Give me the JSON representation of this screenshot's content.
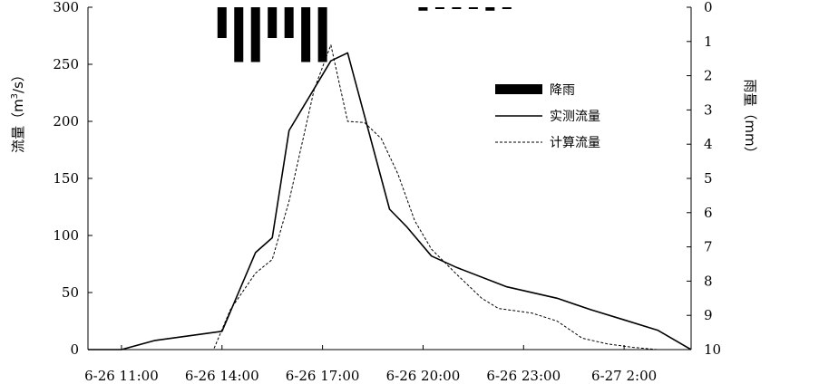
{
  "chart_data": {
    "type": "line",
    "x_unit": "time",
    "x_ticks": [
      "6-26 11:00",
      "6-26 14:00",
      "6-26 17:00",
      "6-26 20:00",
      "6-26 23:00",
      "6-27 2:00"
    ],
    "xlim": [
      "6-26 10:00",
      "6-27 4:00"
    ],
    "y_left": {
      "label_main": "流量",
      "label_unit_base": "（m",
      "label_unit_sup": "3",
      "label_unit_end": "/s）",
      "ylim": [
        0,
        300
      ],
      "ticks": [
        "0",
        "50",
        "100",
        "150",
        "200",
        "250",
        "300"
      ]
    },
    "y_right": {
      "label": "雨量（mm）",
      "ylim": [
        0,
        10
      ],
      "inverted": true,
      "ticks": [
        "0",
        "1",
        "2",
        "3",
        "4",
        "5",
        "6",
        "7",
        "8",
        "9",
        "10"
      ]
    },
    "legend": {
      "position": "upper-right",
      "entries": [
        "降雨",
        "实测流量",
        "计算流量"
      ]
    },
    "grid": false,
    "series": [
      {
        "name": "降雨",
        "type": "bar",
        "axis": "right",
        "color": "#000000",
        "x": [
          "6-26 14:00",
          "6-26 14:30",
          "6-26 15:00",
          "6-26 15:30",
          "6-26 16:00",
          "6-26 16:30",
          "6-26 17:00",
          "6-26 17:30",
          "6-26 20:00",
          "6-26 20:30",
          "6-26 21:00",
          "6-26 21:30",
          "6-26 22:00",
          "6-26 22:30"
        ],
        "values": [
          0.9,
          1.6,
          1.6,
          0.9,
          0.9,
          1.6,
          1.6,
          0.0,
          0.1,
          0.05,
          0.05,
          0.05,
          0.1,
          0.05
        ]
      },
      {
        "name": "实测流量",
        "type": "line",
        "axis": "left",
        "style": "solid",
        "color": "#000000",
        "x": [
          "6-26 10:00",
          "6-26 11:00",
          "6-26 12:00",
          "6-26 14:00",
          "6-26 15:00",
          "6-26 15:30",
          "6-26 16:00",
          "6-26 17:15",
          "6-26 17:45",
          "6-26 19:00",
          "6-26 19:30",
          "6-26 20:15",
          "6-26 21:00",
          "6-26 22:30",
          "6-27 0:00",
          "6-27 1:00",
          "6-27 2:00",
          "6-27 3:00",
          "6-27 4:00"
        ],
        "values": [
          0,
          0,
          8,
          16,
          85,
          98,
          192,
          253,
          260,
          123,
          108,
          82,
          72,
          55,
          45,
          35,
          26,
          17,
          0
        ]
      },
      {
        "name": "计算流量",
        "type": "line",
        "axis": "left",
        "style": "dashed",
        "color": "#000000",
        "x": [
          "6-26 10:00",
          "6-26 13:45",
          "6-26 14:15",
          "6-26 15:00",
          "6-26 15:30",
          "6-26 16:00",
          "6-26 16:45",
          "6-26 17:15",
          "6-26 17:45",
          "6-26 18:15",
          "6-26 18:45",
          "6-26 19:15",
          "6-26 19:45",
          "6-26 20:15",
          "6-26 21:00",
          "6-26 21:45",
          "6-26 22:15",
          "6-26 23:15",
          "6-27 0:00",
          "6-27 0:45",
          "6-27 1:30",
          "6-27 2:15",
          "6-27 3:00",
          "6-27 4:00"
        ],
        "values": [
          0,
          0,
          35,
          67,
          79,
          130,
          228,
          267,
          200,
          199,
          185,
          154,
          113,
          88,
          66,
          45,
          36,
          32,
          25,
          10,
          5,
          2,
          0,
          0
        ]
      }
    ]
  }
}
